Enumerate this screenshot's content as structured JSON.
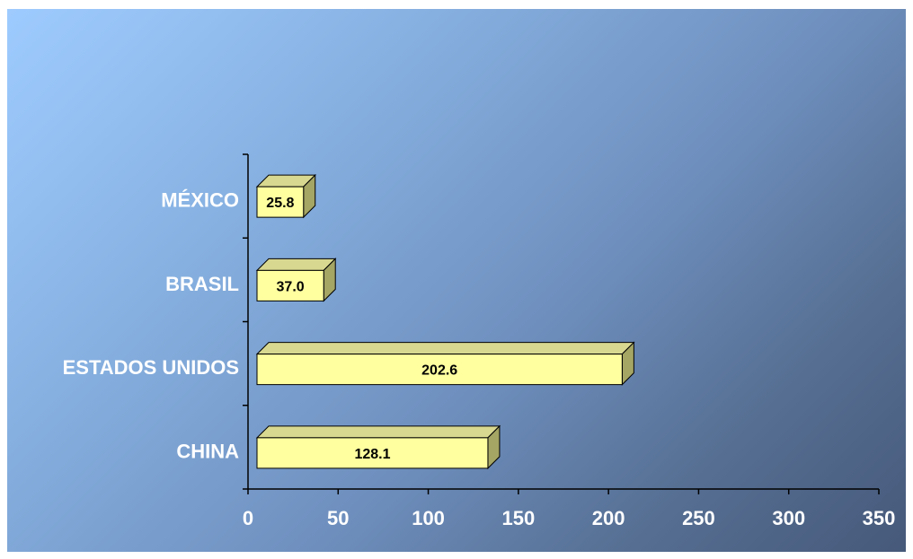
{
  "chart_data": {
    "type": "bar",
    "orientation": "horizontal",
    "categories": [
      "MÉXICO",
      "BRASIL",
      "ESTADOS UNIDOS",
      "CHINA"
    ],
    "values": [
      25.8,
      37.0,
      202.6,
      128.1
    ],
    "value_labels": [
      "25.8",
      "37.0",
      "202.6",
      "128.1"
    ],
    "xlim": [
      0,
      350
    ],
    "xticks": [
      0,
      50,
      100,
      150,
      200,
      250,
      300,
      350
    ],
    "tick_labels": [
      "0",
      "50",
      "100",
      "150",
      "200",
      "250",
      "300",
      "350"
    ],
    "grid": false,
    "style": "3d",
    "colors": {
      "bar_front": "#ffffa0",
      "bar_top": "#d8d890",
      "bar_side": "#a5a564",
      "axis": "#000000",
      "text": "#ffffff"
    }
  }
}
